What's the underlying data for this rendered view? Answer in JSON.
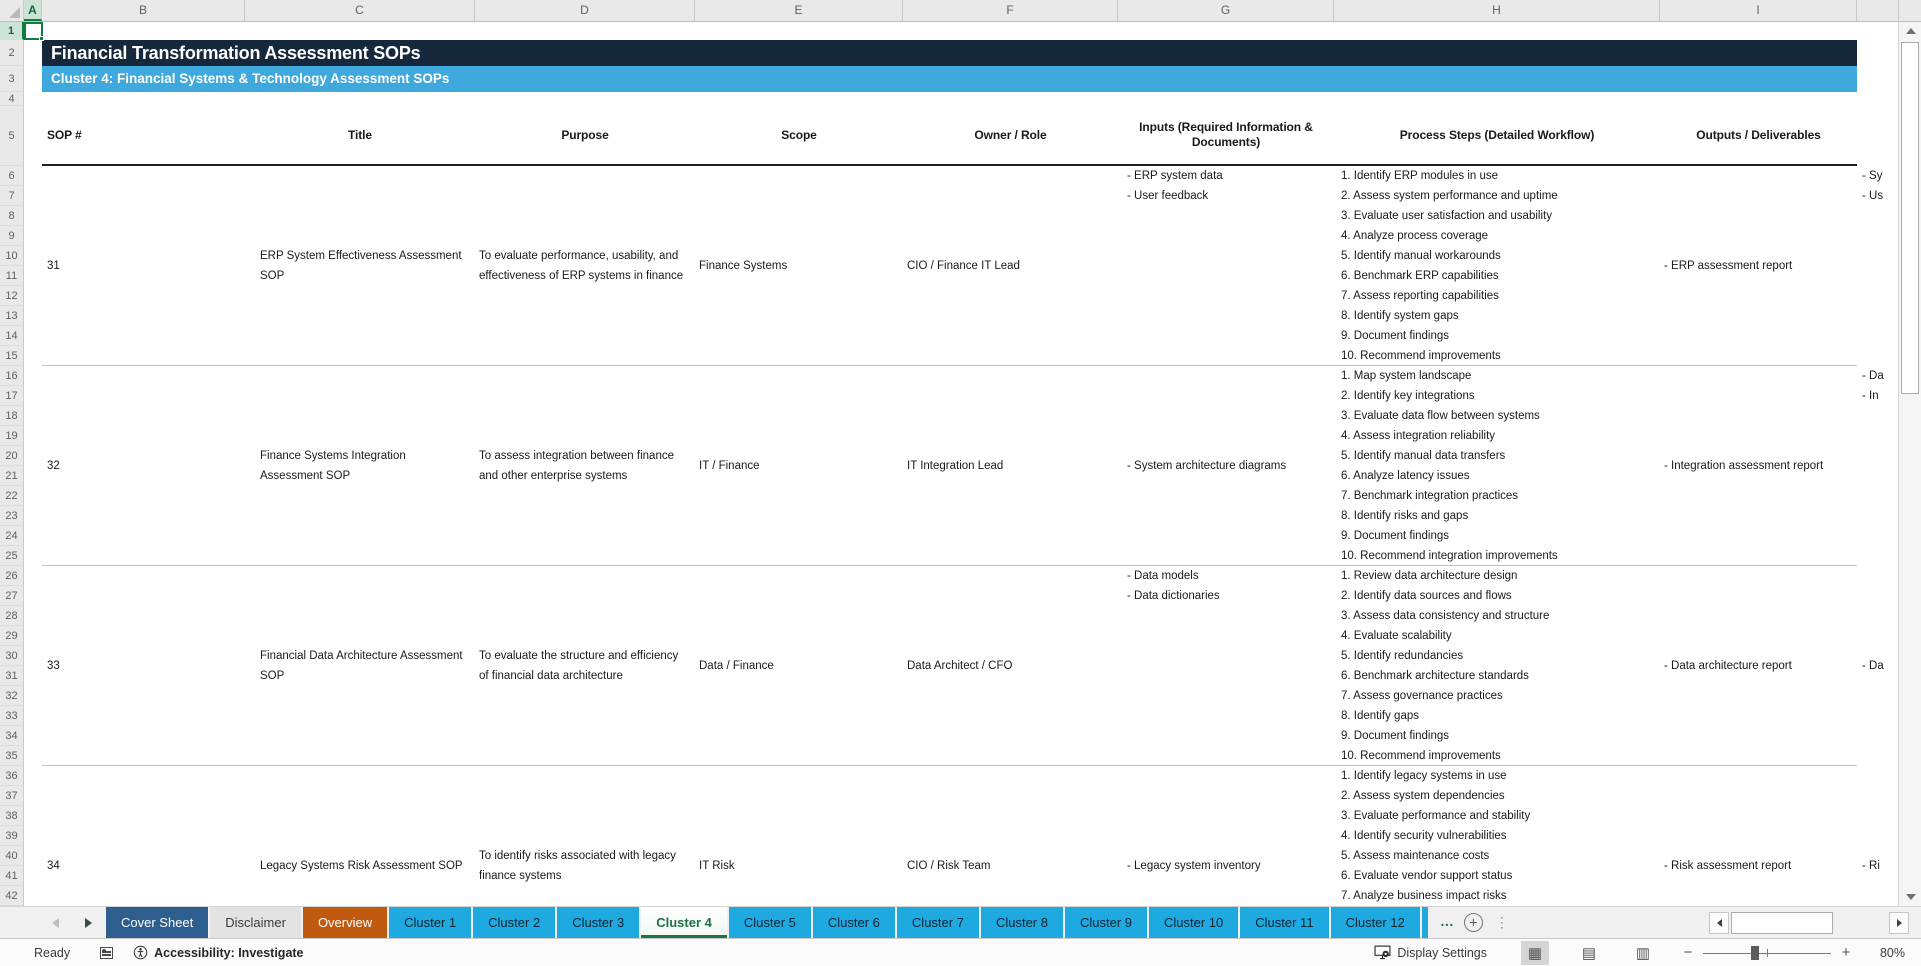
{
  "titles": {
    "main": "Financial Transformation Assessment SOPs",
    "cluster": "Cluster 4: Financial Systems & Technology Assessment SOPs"
  },
  "colors": {
    "title_band_bg": "#16283B",
    "cluster_band_bg": "#3FA8DC",
    "selection_green": "#107C41",
    "cover_tab_bg": "#2D5E8E",
    "overview_tab_bg": "#C05A11",
    "cluster_tab_bg": "#1FA9E1",
    "active_tab_text": "#1E7145"
  },
  "grid": {
    "column_letters": [
      "A",
      "B",
      "C",
      "D",
      "E",
      "F",
      "G",
      "H",
      "I"
    ],
    "active_column": "A",
    "active_row": 1,
    "last_visible_row": 42
  },
  "table": {
    "headers": [
      "SOP #",
      "Title",
      "Purpose",
      "Scope",
      "Owner / Role",
      "Inputs (Required Information & Documents)",
      "Process Steps (Detailed Workflow)",
      "Outputs / Deliverables"
    ],
    "sops": [
      {
        "sop": "31",
        "title": "ERP System Effectiveness Assessment SOP",
        "purpose": "To evaluate performance, usability, and effectiveness of ERP systems in finance",
        "scope": "Finance Systems",
        "owner": "CIO / Finance IT Lead",
        "inputs": [
          "- ERP system data",
          "- User feedback"
        ],
        "steps": [
          "1. Identify ERP modules in use",
          "2. Assess system performance and uptime",
          "3. Evaluate user satisfaction and usability",
          "4. Analyze process coverage",
          "5. Identify manual workarounds",
          "6. Benchmark ERP capabilities",
          "7. Assess reporting capabilities",
          "8. Identify system gaps",
          "9. Document findings",
          "10. Recommend improvements"
        ],
        "outputs": [
          "- ERP assessment report"
        ],
        "next_column_clipped": [
          "- Sy",
          "- Us"
        ]
      },
      {
        "sop": "32",
        "title": "Finance Systems Integration Assessment SOP",
        "purpose": "To assess integration between finance and other enterprise systems",
        "scope": "IT / Finance",
        "owner": "IT Integration Lead",
        "inputs": [
          "- System architecture diagrams"
        ],
        "steps": [
          "1. Map system landscape",
          "2. Identify key integrations",
          "3. Evaluate data flow between systems",
          "4. Assess integration reliability",
          "5. Identify manual data transfers",
          "6. Analyze latency issues",
          "7. Benchmark integration practices",
          "8. Identify risks and gaps",
          "9. Document findings",
          "10. Recommend integration improvements"
        ],
        "outputs": [
          "- Integration assessment report"
        ],
        "next_column_clipped": [
          "- Da",
          "- In"
        ]
      },
      {
        "sop": "33",
        "title": "Financial Data Architecture Assessment SOP",
        "purpose": "To evaluate the structure and efficiency of financial data architecture",
        "scope": "Data / Finance",
        "owner": "Data Architect / CFO",
        "inputs": [
          "- Data models",
          "- Data dictionaries"
        ],
        "steps": [
          "1. Review data architecture design",
          "2. Identify data sources and flows",
          "3. Assess data consistency and structure",
          "4. Evaluate scalability",
          "5. Identify redundancies",
          "6. Benchmark architecture standards",
          "7. Assess governance practices",
          "8. Identify gaps",
          "9. Document findings",
          "10. Recommend improvements"
        ],
        "outputs": [
          "- Data architecture report"
        ],
        "next_column_clipped": [
          "- Da"
        ]
      },
      {
        "sop": "34",
        "title": "Legacy Systems Risk Assessment SOP",
        "purpose": "To identify risks associated with legacy finance systems",
        "scope": "IT Risk",
        "owner": "CIO / Risk Team",
        "inputs": [
          "- Legacy system inventory"
        ],
        "steps": [
          "1. Identify legacy systems in use",
          "2. Assess system dependencies",
          "3. Evaluate performance and stability",
          "4. Identify security vulnerabilities",
          "5. Assess maintenance costs",
          "6. Evaluate vendor support status",
          "7. Analyze business impact risks"
        ],
        "outputs": [
          "- Risk assessment report"
        ],
        "next_column_clipped": [
          "- Ri"
        ]
      }
    ]
  },
  "tabs": {
    "items": [
      {
        "label": "Cover Sheet",
        "style": "cover",
        "active": false
      },
      {
        "label": "Disclaimer",
        "style": "plain",
        "active": false
      },
      {
        "label": "Overview",
        "style": "overview",
        "active": false
      },
      {
        "label": "Cluster 1",
        "style": "cluster",
        "active": false
      },
      {
        "label": "Cluster 2",
        "style": "cluster",
        "active": false
      },
      {
        "label": "Cluster 3",
        "style": "cluster",
        "active": false
      },
      {
        "label": "Cluster 4",
        "style": "cluster",
        "active": true
      },
      {
        "label": "Cluster 5",
        "style": "cluster",
        "active": false
      },
      {
        "label": "Cluster 6",
        "style": "cluster",
        "active": false
      },
      {
        "label": "Cluster 7",
        "style": "cluster",
        "active": false
      },
      {
        "label": "Cluster 8",
        "style": "cluster",
        "active": false
      },
      {
        "label": "Cluster 9",
        "style": "cluster",
        "active": false
      },
      {
        "label": "Cluster 10",
        "style": "cluster",
        "active": false
      },
      {
        "label": "Cluster 11",
        "style": "cluster",
        "active": false
      },
      {
        "label": "Cluster 12",
        "style": "cluster",
        "active": false
      }
    ],
    "overflow_label": "…",
    "new_sheet_label": "+"
  },
  "status_bar": {
    "mode": "Ready",
    "accessibility": "Accessibility: Investigate",
    "display_settings": "Display Settings",
    "zoom_level": "80%"
  }
}
